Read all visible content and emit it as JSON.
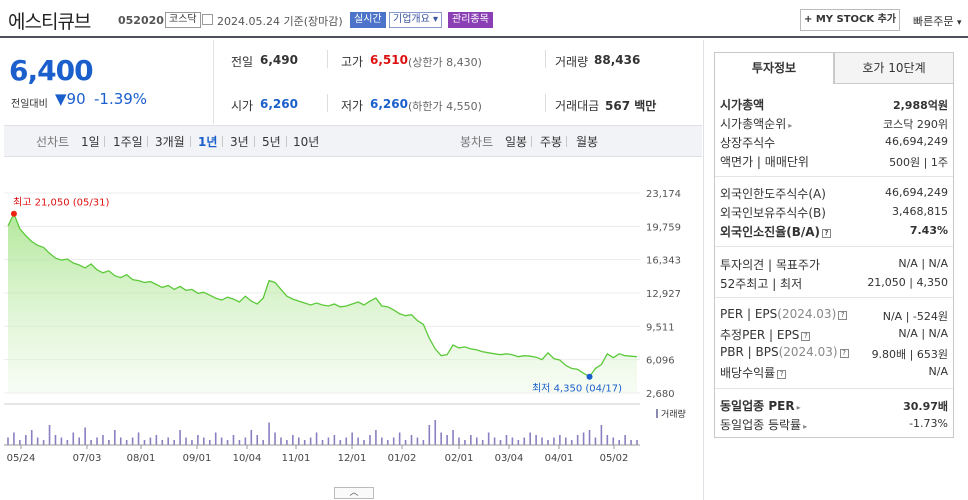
{
  "header": {
    "name": "에스티큐브",
    "code": "052020",
    "market": "코스닥",
    "date_text": "2024.05.24 기준(장마감)",
    "realtime": "실시간",
    "company_info": "기업개요",
    "managed": "관리종목",
    "mystock": "+ MY STOCK 추가",
    "quick_order": "빠른주문"
  },
  "quote": {
    "price": "6,400",
    "change_label": "전일대비",
    "change": "▼90",
    "change_pct": "-1.39%",
    "prev_label": "전일",
    "prev": "6,490",
    "high_label": "고가",
    "high": "6,510",
    "upper_limit": "(상한가 8,430)",
    "volume_label": "거래량",
    "volume": "88,436",
    "open_label": "시가",
    "open": "6,260",
    "low_label": "저가",
    "low": "6,260",
    "lower_limit": "(하한가 4,550)",
    "amount_label": "거래대금",
    "amount": "567 백만"
  },
  "periods": {
    "line_label": "선차트",
    "line": [
      "1일",
      "1주일",
      "3개월",
      "1년",
      "3년",
      "5년",
      "10년"
    ],
    "candle_label": "봉차트",
    "candle": [
      "일봉",
      "주봉",
      "월봉"
    ]
  },
  "chart_data": {
    "type": "area",
    "x_ticks": [
      "05/24",
      "07/03",
      "08/01",
      "09/01",
      "10/04",
      "11/01",
      "12/01",
      "01/02",
      "02/01",
      "03/04",
      "04/01",
      "05/02"
    ],
    "y_ticks": [
      23174,
      19759,
      16343,
      12927,
      9511,
      6096,
      2680
    ],
    "ylim": [
      2680,
      23174
    ],
    "high_label": "최고 21,050 (05/31)",
    "low_label": "최저 4,350 (04/17)",
    "volume_label": "거래량",
    "values": [
      19800,
      21050,
      19500,
      18800,
      18200,
      17800,
      17600,
      17000,
      16500,
      16300,
      16400,
      16000,
      15800,
      15500,
      15900,
      15300,
      15000,
      15200,
      14700,
      14500,
      14800,
      14300,
      14200,
      14000,
      14100,
      13800,
      13500,
      13700,
      13300,
      13600,
      13200,
      13300,
      12900,
      13000,
      12700,
      12400,
      12200,
      12500,
      12300,
      12000,
      12600,
      12100,
      11800,
      12400,
      14200,
      14000,
      13300,
      12600,
      12300,
      12100,
      11900,
      11700,
      11900,
      11700,
      11600,
      11800,
      11500,
      11600,
      11800,
      12000,
      11700,
      12100,
      12400,
      11600,
      11500,
      11200,
      10800,
      10600,
      10700,
      10100,
      9700,
      8300,
      7200,
      6500,
      6600,
      7600,
      7300,
      7400,
      7200,
      7100,
      6900,
      6800,
      6700,
      6600,
      6700,
      6600,
      6400,
      6500,
      6450,
      6350,
      6100,
      6800,
      6200,
      6050,
      5500,
      5200,
      5100,
      4700,
      4350,
      5200,
      5600,
      6700,
      6300,
      6700,
      6500,
      6450,
      6400
    ],
    "volume": [
      3,
      5,
      2,
      4,
      6,
      3,
      2,
      8,
      4,
      3,
      2,
      5,
      3,
      7,
      2,
      3,
      4,
      2,
      6,
      3,
      2,
      3,
      5,
      2,
      3,
      4,
      2,
      3,
      2,
      6,
      3,
      2,
      4,
      3,
      2,
      5,
      3,
      2,
      4,
      2,
      3,
      6,
      4,
      2,
      9,
      5,
      3,
      2,
      4,
      3,
      2,
      3,
      5,
      2,
      3,
      4,
      2,
      3,
      5,
      3,
      2,
      4,
      6,
      3,
      2,
      3,
      5,
      2,
      4,
      3,
      2,
      8,
      10,
      5,
      4,
      6,
      3,
      2,
      4,
      3,
      2,
      5,
      3,
      2,
      4,
      3,
      2,
      3,
      5,
      4,
      3,
      2,
      3,
      4,
      3,
      2,
      4,
      5,
      6,
      3,
      8,
      4,
      3,
      2,
      4,
      2,
      2
    ]
  },
  "right": {
    "tab1": "투자정보",
    "tab2": "호가 10단계",
    "rows": {
      "mcap_label": "시가총액",
      "mcap": "2,988억원",
      "mcap_rank_label": "시가총액순위",
      "mcap_rank": "코스닥 290위",
      "shares_label": "상장주식수",
      "shares": "46,694,249",
      "par_label": "액면가 | 매매단위",
      "par": "500원 | 1주",
      "foreign_limit_label": "외국인한도주식수(A)",
      "foreign_limit": "46,694,249",
      "foreign_hold_label": "외국인보유주식수(B)",
      "foreign_hold": "3,468,815",
      "foreign_ratio_label": "외국인소진율(B/A)",
      "foreign_ratio": "7.43%",
      "opinion_label": "투자의견 | 목표주가",
      "opinion": "N/A | N/A",
      "w52_label": "52주최고 | 최저",
      "w52": "21,050 | 4,350",
      "per_label": "PER | EPS",
      "per_period": "(2024.03)",
      "per": "N/A | -524원",
      "eper_label": "추정PER | EPS",
      "eper": "N/A | N/A",
      "pbr_label": "PBR | BPS",
      "pbr_period": "(2024.03)",
      "pbr": "9.80배 | 653원",
      "div_label": "배당수익률",
      "div": "N/A",
      "ind_per_label": "동일업종 PER",
      "ind_per": "30.97배",
      "ind_chg_label": "동일업종 등락률",
      "ind_chg": "-1.73%"
    }
  }
}
